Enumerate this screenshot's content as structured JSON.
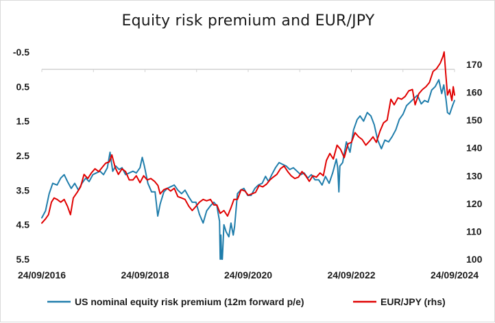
{
  "chart_data": {
    "type": "line",
    "title": "Equity risk premium and EUR/JPY",
    "x_ticks": [
      "24/09/2016",
      "24/09/2018",
      "24/09/2020",
      "24/09/2022",
      "24/09/2024"
    ],
    "y_left": {
      "reversed": true,
      "min": -0.5,
      "max": 5.5,
      "ticks": [
        "-0.5",
        "0.5",
        "1.5",
        "2.5",
        "3.5",
        "4.5",
        "5.5"
      ]
    },
    "y_right": {
      "min": 100,
      "max": 175,
      "ticks": [
        "100",
        "110",
        "120",
        "130",
        "140",
        "150",
        "160",
        "170"
      ]
    },
    "grid": false,
    "legend_position": "bottom",
    "series": [
      {
        "name": "US nominal equity risk premium (12m forward p/e)",
        "axis": "left",
        "color": "#1f7dab",
        "points": [
          [
            "2016-09-24",
            4.3
          ],
          [
            "2016-10-20",
            4.1
          ],
          [
            "2016-11-15",
            3.6
          ],
          [
            "2016-12-10",
            3.3
          ],
          [
            "2017-01-10",
            3.35
          ],
          [
            "2017-02-05",
            3.15
          ],
          [
            "2017-03-01",
            3.05
          ],
          [
            "2017-03-25",
            3.25
          ],
          [
            "2017-04-20",
            3.45
          ],
          [
            "2017-05-15",
            3.3
          ],
          [
            "2017-06-10",
            3.5
          ],
          [
            "2017-07-05",
            3.3
          ],
          [
            "2017-08-01",
            3.15
          ],
          [
            "2017-08-25",
            3.25
          ],
          [
            "2017-09-20",
            3.05
          ],
          [
            "2017-10-15",
            3.0
          ],
          [
            "2017-11-10",
            2.95
          ],
          [
            "2017-12-05",
            3.05
          ],
          [
            "2018-01-01",
            2.85
          ],
          [
            "2018-01-20",
            2.4
          ],
          [
            "2018-02-08",
            2.95
          ],
          [
            "2018-03-01",
            2.8
          ],
          [
            "2018-03-25",
            2.9
          ],
          [
            "2018-04-15",
            2.85
          ],
          [
            "2018-05-10",
            3.05
          ],
          [
            "2018-06-05",
            3.0
          ],
          [
            "2018-07-01",
            2.95
          ],
          [
            "2018-07-25",
            3.0
          ],
          [
            "2018-08-20",
            2.85
          ],
          [
            "2018-09-05",
            2.55
          ],
          [
            "2018-09-20",
            2.8
          ],
          [
            "2018-10-15",
            3.3
          ],
          [
            "2018-11-10",
            3.55
          ],
          [
            "2018-12-05",
            3.55
          ],
          [
            "2018-12-24",
            4.25
          ],
          [
            "2019-01-10",
            3.9
          ],
          [
            "2019-02-05",
            3.55
          ],
          [
            "2019-03-01",
            3.45
          ],
          [
            "2019-03-25",
            3.4
          ],
          [
            "2019-04-20",
            3.35
          ],
          [
            "2019-05-15",
            3.5
          ],
          [
            "2019-06-10",
            3.6
          ],
          [
            "2019-07-05",
            3.5
          ],
          [
            "2019-08-01",
            3.7
          ],
          [
            "2019-08-25",
            3.85
          ],
          [
            "2019-09-20",
            3.85
          ],
          [
            "2019-10-15",
            4.2
          ],
          [
            "2019-11-10",
            4.45
          ],
          [
            "2019-12-05",
            4.1
          ],
          [
            "2020-01-01",
            3.95
          ],
          [
            "2020-01-25",
            3.85
          ],
          [
            "2020-02-15",
            3.95
          ],
          [
            "2020-03-05",
            4.4
          ],
          [
            "2020-03-10",
            5.5
          ],
          [
            "2020-03-15",
            4.8
          ],
          [
            "2020-03-20",
            5.5
          ],
          [
            "2020-03-25",
            5.5
          ],
          [
            "2020-04-05",
            4.5
          ],
          [
            "2020-04-20",
            4.7
          ],
          [
            "2020-05-10",
            4.85
          ],
          [
            "2020-05-25",
            4.45
          ],
          [
            "2020-06-10",
            4.8
          ],
          [
            "2020-06-20",
            4.55
          ],
          [
            "2020-07-10",
            3.6
          ],
          [
            "2020-08-01",
            3.5
          ],
          [
            "2020-08-25",
            3.45
          ],
          [
            "2020-09-20",
            3.65
          ],
          [
            "2020-10-15",
            3.65
          ],
          [
            "2020-11-10",
            3.45
          ],
          [
            "2020-12-05",
            3.35
          ],
          [
            "2021-01-01",
            3.3
          ],
          [
            "2021-01-25",
            3.1
          ],
          [
            "2021-02-15",
            3.25
          ],
          [
            "2021-03-10",
            3.05
          ],
          [
            "2021-04-05",
            2.85
          ],
          [
            "2021-05-01",
            2.7
          ],
          [
            "2021-05-25",
            2.75
          ],
          [
            "2021-06-20",
            2.8
          ],
          [
            "2021-07-15",
            2.9
          ],
          [
            "2021-08-10",
            2.85
          ],
          [
            "2021-09-05",
            2.95
          ],
          [
            "2021-10-01",
            3.05
          ],
          [
            "2021-10-25",
            3.0
          ],
          [
            "2021-11-20",
            3.15
          ],
          [
            "2021-12-15",
            3.05
          ],
          [
            "2022-01-10",
            3.2
          ],
          [
            "2022-02-05",
            3.2
          ],
          [
            "2022-03-01",
            3.35
          ],
          [
            "2022-03-25",
            3.1
          ],
          [
            "2022-04-20",
            3.3
          ],
          [
            "2022-05-15",
            3.0
          ],
          [
            "2022-06-10",
            2.6
          ],
          [
            "2022-06-20",
            2.85
          ],
          [
            "2022-06-28",
            3.55
          ],
          [
            "2022-07-05",
            2.8
          ],
          [
            "2022-07-25",
            2.7
          ],
          [
            "2022-08-20",
            2.1
          ],
          [
            "2022-09-15",
            2.4
          ],
          [
            "2022-10-10",
            1.75
          ],
          [
            "2022-11-05",
            1.45
          ],
          [
            "2022-11-25",
            1.35
          ],
          [
            "2022-12-20",
            1.5
          ],
          [
            "2023-01-15",
            1.25
          ],
          [
            "2023-02-10",
            1.35
          ],
          [
            "2023-03-05",
            1.6
          ],
          [
            "2023-03-30",
            2.05
          ],
          [
            "2023-04-25",
            2.3
          ],
          [
            "2023-05-20",
            2.05
          ],
          [
            "2023-06-15",
            2.1
          ],
          [
            "2023-07-10",
            1.95
          ],
          [
            "2023-08-05",
            1.75
          ],
          [
            "2023-08-30",
            1.45
          ],
          [
            "2023-09-25",
            1.3
          ],
          [
            "2023-10-20",
            1.05
          ],
          [
            "2023-11-15",
            0.95
          ],
          [
            "2023-12-10",
            0.85
          ],
          [
            "2024-01-05",
            0.75
          ],
          [
            "2024-02-01",
            1.0
          ],
          [
            "2024-02-25",
            0.9
          ],
          [
            "2024-03-20",
            0.95
          ],
          [
            "2024-04-15",
            0.6
          ],
          [
            "2024-05-10",
            0.5
          ],
          [
            "2024-06-05",
            0.3
          ],
          [
            "2024-06-25",
            0.7
          ],
          [
            "2024-07-10",
            0.45
          ],
          [
            "2024-07-25",
            0.85
          ],
          [
            "2024-08-05",
            1.25
          ],
          [
            "2024-08-20",
            1.3
          ],
          [
            "2024-09-10",
            1.05
          ],
          [
            "2024-09-24",
            0.9
          ]
        ]
      },
      {
        "name": "EUR/JPY (rhs)",
        "axis": "right",
        "color": "#e00000",
        "points": [
          [
            "2016-09-24",
            113
          ],
          [
            "2016-10-20",
            114.5
          ],
          [
            "2016-11-10",
            116
          ],
          [
            "2016-12-01",
            120.5
          ],
          [
            "2016-12-20",
            122
          ],
          [
            "2017-01-10",
            121.5
          ],
          [
            "2017-02-05",
            120.5
          ],
          [
            "2017-03-01",
            121.5
          ],
          [
            "2017-03-25",
            119
          ],
          [
            "2017-04-15",
            116
          ],
          [
            "2017-05-05",
            122
          ],
          [
            "2017-06-01",
            124
          ],
          [
            "2017-06-25",
            126
          ],
          [
            "2017-07-20",
            130.5
          ],
          [
            "2017-08-15",
            129
          ],
          [
            "2017-09-10",
            131
          ],
          [
            "2017-10-05",
            132.5
          ],
          [
            "2017-11-01",
            131.5
          ],
          [
            "2017-11-25",
            133
          ],
          [
            "2017-12-20",
            134.5
          ],
          [
            "2018-01-15",
            135
          ],
          [
            "2018-02-02",
            137.5
          ],
          [
            "2018-02-25",
            133
          ],
          [
            "2018-03-20",
            130.5
          ],
          [
            "2018-04-15",
            132.5
          ],
          [
            "2018-05-10",
            131.5
          ],
          [
            "2018-06-05",
            128.5
          ],
          [
            "2018-07-01",
            128.5
          ],
          [
            "2018-07-25",
            130
          ],
          [
            "2018-08-20",
            127.5
          ],
          [
            "2018-09-15",
            130
          ],
          [
            "2018-10-10",
            128.5
          ],
          [
            "2018-11-05",
            129
          ],
          [
            "2018-12-01",
            128
          ],
          [
            "2018-12-25",
            126.5
          ],
          [
            "2019-01-10",
            123.5
          ],
          [
            "2019-02-05",
            125
          ],
          [
            "2019-03-01",
            125.5
          ],
          [
            "2019-03-25",
            124.5
          ],
          [
            "2019-04-20",
            125.5
          ],
          [
            "2019-05-15",
            122.5
          ],
          [
            "2019-06-10",
            122
          ],
          [
            "2019-07-05",
            121.5
          ],
          [
            "2019-08-01",
            119
          ],
          [
            "2019-08-25",
            117.5
          ],
          [
            "2019-09-20",
            119
          ],
          [
            "2019-10-15",
            120.5
          ],
          [
            "2019-11-10",
            121.5
          ],
          [
            "2019-12-05",
            121
          ],
          [
            "2020-01-01",
            121.5
          ],
          [
            "2020-01-25",
            119.5
          ],
          [
            "2020-02-15",
            119.5
          ],
          [
            "2020-03-10",
            116.5
          ],
          [
            "2020-04-05",
            117.5
          ],
          [
            "2020-05-01",
            115.5
          ],
          [
            "2020-05-25",
            118.5
          ],
          [
            "2020-06-15",
            121.5
          ],
          [
            "2020-07-10",
            121.5
          ],
          [
            "2020-08-05",
            125
          ],
          [
            "2020-09-01",
            124.5
          ],
          [
            "2020-09-25",
            123
          ],
          [
            "2020-10-20",
            123.5
          ],
          [
            "2020-11-15",
            124
          ],
          [
            "2020-12-10",
            126.5
          ],
          [
            "2021-01-05",
            126
          ],
          [
            "2021-02-01",
            127
          ],
          [
            "2021-02-25",
            128.5
          ],
          [
            "2021-03-20",
            129.5
          ],
          [
            "2021-04-15",
            130.5
          ],
          [
            "2021-05-10",
            132.5
          ],
          [
            "2021-06-05",
            133.5
          ],
          [
            "2021-07-01",
            131.5
          ],
          [
            "2021-07-25",
            130
          ],
          [
            "2021-08-20",
            129
          ],
          [
            "2021-09-15",
            129.5
          ],
          [
            "2021-10-10",
            131.5
          ],
          [
            "2021-11-05",
            130
          ],
          [
            "2021-12-01",
            128
          ],
          [
            "2021-12-25",
            130
          ],
          [
            "2022-01-20",
            129.5
          ],
          [
            "2022-02-15",
            131
          ],
          [
            "2022-03-10",
            130
          ],
          [
            "2022-04-01",
            135.5
          ],
          [
            "2022-04-25",
            138
          ],
          [
            "2022-05-20",
            136
          ],
          [
            "2022-06-15",
            141
          ],
          [
            "2022-07-10",
            139.5
          ],
          [
            "2022-08-05",
            136.5
          ],
          [
            "2022-09-01",
            141.5
          ],
          [
            "2022-09-25",
            142
          ],
          [
            "2022-10-20",
            145.5
          ],
          [
            "2022-11-15",
            144
          ],
          [
            "2022-12-10",
            143
          ],
          [
            "2023-01-05",
            141
          ],
          [
            "2023-02-01",
            142.5
          ],
          [
            "2023-02-25",
            144
          ],
          [
            "2023-03-20",
            142
          ],
          [
            "2023-04-15",
            146
          ],
          [
            "2023-05-10",
            149
          ],
          [
            "2023-06-05",
            150
          ],
          [
            "2023-07-01",
            157.5
          ],
          [
            "2023-07-25",
            155.5
          ],
          [
            "2023-08-20",
            158
          ],
          [
            "2023-09-15",
            157.5
          ],
          [
            "2023-10-10",
            158.5
          ],
          [
            "2023-11-05",
            160.5
          ],
          [
            "2023-12-01",
            161
          ],
          [
            "2023-12-20",
            155.5
          ],
          [
            "2024-01-15",
            159.5
          ],
          [
            "2024-02-10",
            161
          ],
          [
            "2024-03-05",
            162
          ],
          [
            "2024-03-30",
            163.5
          ],
          [
            "2024-04-25",
            167.5
          ],
          [
            "2024-05-20",
            168.5
          ],
          [
            "2024-06-15",
            170.5
          ],
          [
            "2024-07-05",
            173
          ],
          [
            "2024-07-12",
            174.5
          ],
          [
            "2024-07-25",
            166
          ],
          [
            "2024-08-05",
            159
          ],
          [
            "2024-08-20",
            161
          ],
          [
            "2024-09-05",
            157
          ],
          [
            "2024-09-15",
            162
          ],
          [
            "2024-09-24",
            159
          ]
        ]
      }
    ]
  }
}
